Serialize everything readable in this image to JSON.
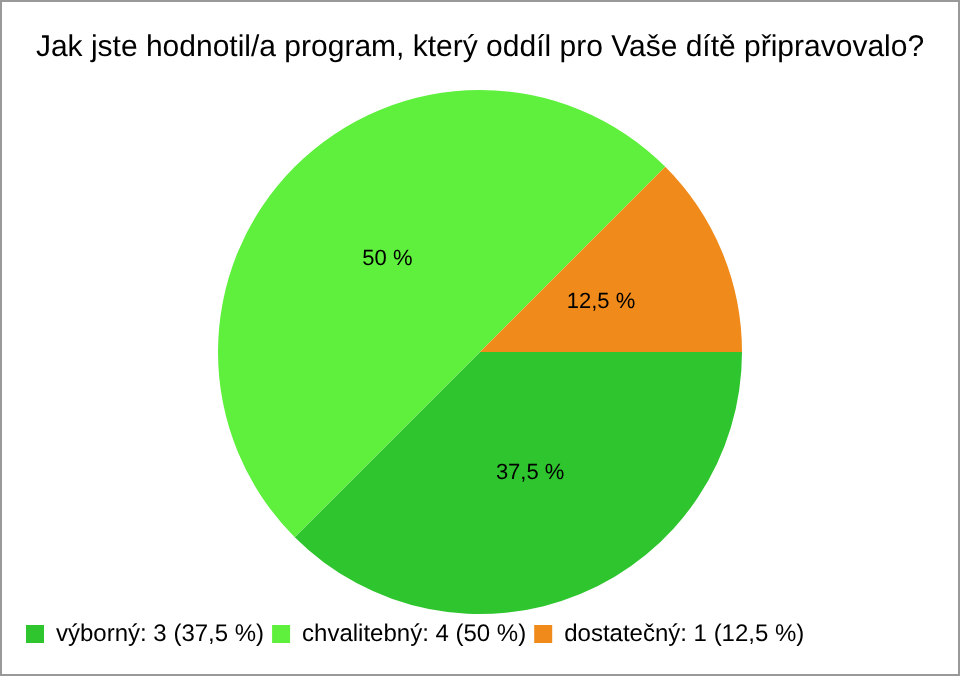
{
  "chart_data": {
    "type": "pie",
    "title": "Jak jste hodnotil/a program, který oddíl pro Vaše dítě připravovalo?",
    "categories": [
      "výborný: 3 (37,5 %)",
      "chvalitebný: 4 (50 %)",
      "dostatečný: 1 (12,5 %)"
    ],
    "values": [
      37.5,
      50,
      12.5
    ],
    "value_labels": [
      "37,5 %",
      "50 %",
      "12,5 %"
    ],
    "colors": [
      "#2ec52e",
      "#5ef03c",
      "#f08a1a"
    ],
    "legend": "bottom left"
  }
}
